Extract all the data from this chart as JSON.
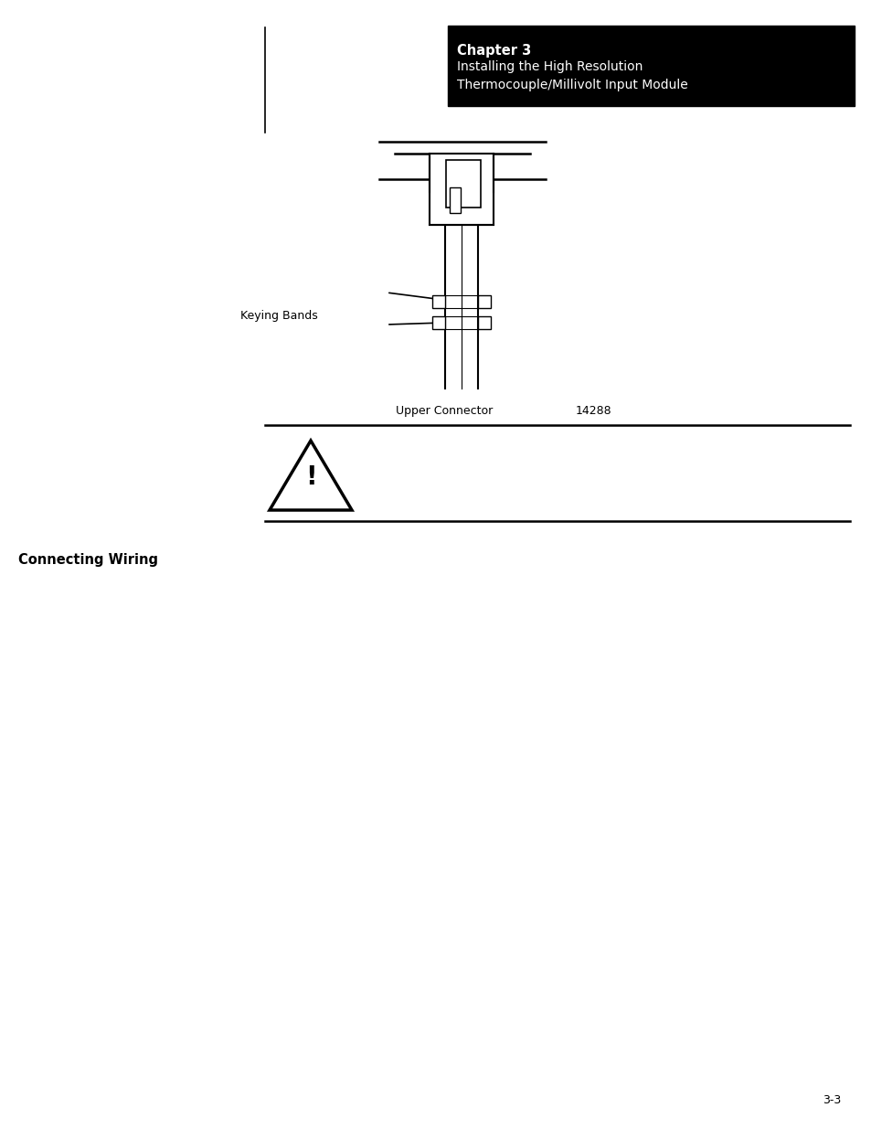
{
  "page_bg": "#ffffff",
  "header_bg": "#000000",
  "header_text_color": "#ffffff",
  "chapter_bold": "Chapter 3",
  "chapter_line2": "Installing the High Resolution",
  "chapter_line3": "Thermocouple/Millivolt Input Module",
  "keying_bands_label": "Keying Bands",
  "upper_connector_label": "Upper Connector",
  "figure_number": "14288",
  "connecting_wiring_label": "Connecting Wiring",
  "page_number": "3-3"
}
